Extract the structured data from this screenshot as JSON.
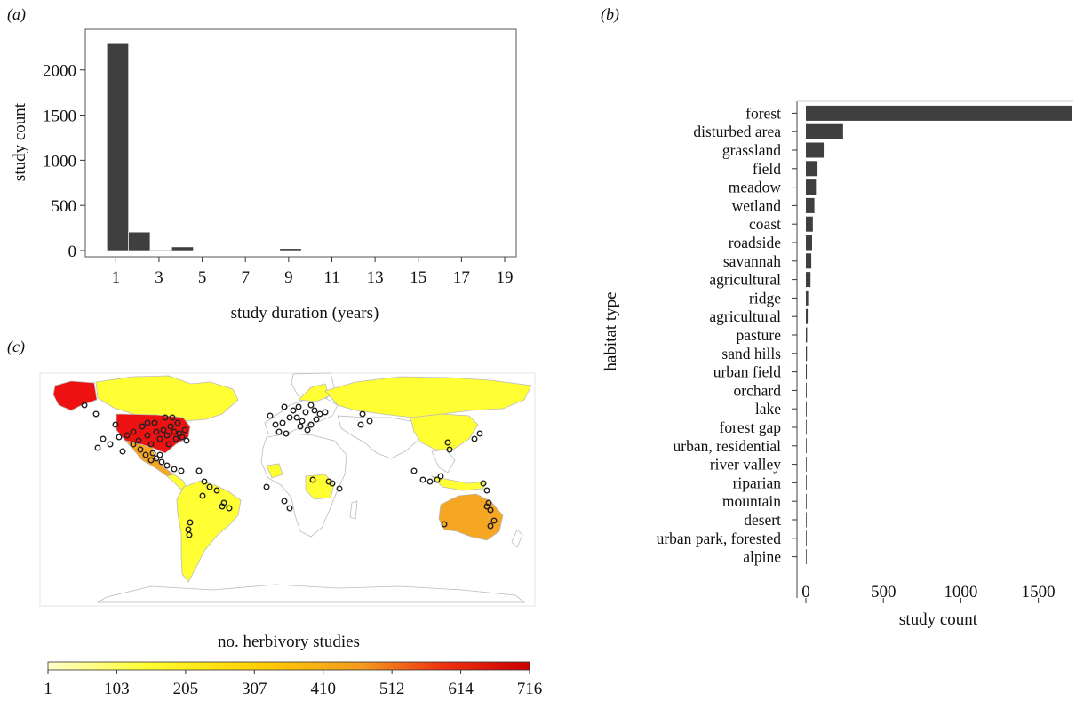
{
  "colors": {
    "bar": "#3f3f3f",
    "axis": "#333333",
    "panel_border": "#555555",
    "map_land_default": "#ffffff",
    "map_border": "#bbbbbb",
    "map_yellow": "#ffff33",
    "map_orange": "#f5a623",
    "map_red": "#ee1111",
    "point_stroke": "#222222"
  },
  "panel_a": {
    "label": "(a)",
    "chart_data": {
      "type": "bar",
      "title": "",
      "xlabel": "study duration (years)",
      "ylabel": "study count",
      "x_ticks": [
        "1",
        "3",
        "5",
        "7",
        "9",
        "11",
        "13",
        "15",
        "17",
        "19"
      ],
      "y_ticks": [
        "0",
        "500",
        "1000",
        "1500",
        "2000"
      ],
      "ylim": [
        0,
        2450
      ],
      "xlim": [
        0,
        20
      ],
      "bins": [
        {
          "x0": 1,
          "x1": 2,
          "count": 2300
        },
        {
          "x0": 2,
          "x1": 3,
          "count": 205
        },
        {
          "x0": 3,
          "x1": 4,
          "count": 8
        },
        {
          "x0": 4,
          "x1": 5,
          "count": 40
        },
        {
          "x0": 9,
          "x1": 10,
          "count": 22
        },
        {
          "x0": 17,
          "x1": 18,
          "count": 3
        }
      ]
    }
  },
  "panel_b": {
    "label": "(b)",
    "chart_data": {
      "type": "bar",
      "orientation": "horizontal",
      "title": "",
      "xlabel": "study count",
      "ylabel": "habitat type",
      "x_ticks": [
        "0",
        "500",
        "1000",
        "1500"
      ],
      "xlim": [
        0,
        1760
      ],
      "categories": [
        "forest",
        "disturbed area",
        "grassland",
        "field",
        "meadow",
        "wetland",
        "coast",
        "roadside",
        "savannah",
        "agricultural",
        "ridge",
        "agricultural",
        "pasture",
        "sand hills",
        "urban field",
        "orchard",
        "lake",
        "forest gap",
        "urban, residential",
        "river valley",
        "riparian",
        "mountain",
        "desert",
        "urban park, forested",
        "alpine"
      ],
      "values": [
        1720,
        240,
        115,
        75,
        65,
        55,
        45,
        40,
        35,
        30,
        15,
        12,
        8,
        7,
        6,
        5,
        5,
        4,
        3,
        3,
        2,
        2,
        2,
        2,
        1
      ]
    }
  },
  "panel_c": {
    "label": "(c)",
    "legend_title": "no. herbivory studies",
    "legend_ticks": [
      "1",
      "103",
      "205",
      "307",
      "410",
      "512",
      "614",
      "716"
    ]
  }
}
